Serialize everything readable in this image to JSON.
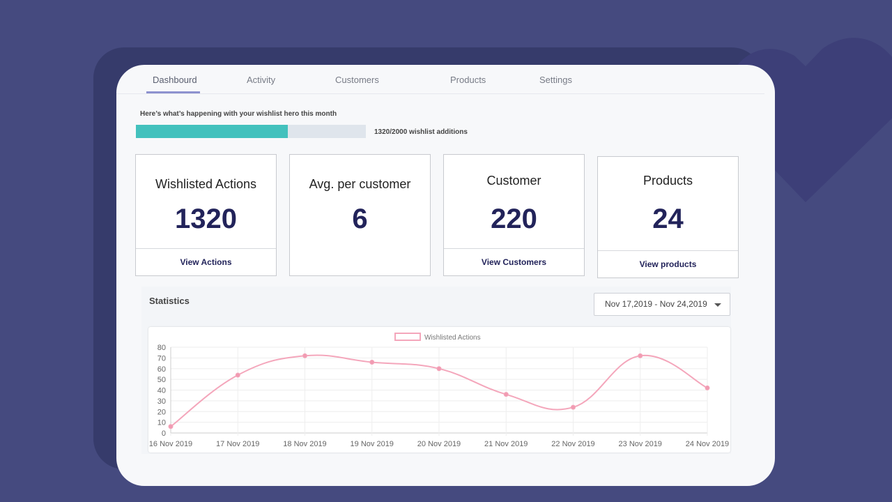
{
  "tabs": [
    {
      "label": "Dashbourd",
      "active": true
    },
    {
      "label": "Activity"
    },
    {
      "label": "Customers"
    },
    {
      "label": "Products"
    },
    {
      "label": "Settings"
    }
  ],
  "intro": "Here’s what’s happening with your wishlist hero this month",
  "progress": {
    "current": 1320,
    "goal": 2000,
    "fraction": 0.66,
    "label": "1320/2000 wishlist additions",
    "color": "#43c1bd"
  },
  "stats": [
    {
      "title": "Wishlisted Actions",
      "value": "1320",
      "link": "View Actions"
    },
    {
      "title": "Avg. per customer",
      "value": "6"
    },
    {
      "title": "Customer",
      "value": "220",
      "link": "View Customers"
    },
    {
      "title": "Products",
      "value": "24",
      "link": "View products"
    }
  ],
  "statistics": {
    "title": "Statistics",
    "date_range": "Nov 17,2019 - Nov 24,2019"
  },
  "chart_data": {
    "type": "line",
    "categories": [
      "16 Nov 2019",
      "17 Nov 2019",
      "18 Nov 2019",
      "19 Nov 2019",
      "20 Nov 2019",
      "21 Nov 2019",
      "22 Nov 2019",
      "23 Nov 2019",
      "24 Nov 2019"
    ],
    "series": [
      {
        "name": "Wishlisted Actions",
        "values": [
          6,
          54,
          72,
          66,
          60,
          36,
          24,
          72,
          42
        ],
        "color": "#f4a6bb"
      }
    ],
    "yticks": [
      0,
      10,
      20,
      30,
      40,
      50,
      60,
      70,
      80
    ],
    "ylim": [
      0,
      80
    ],
    "grid": true,
    "legend": "top",
    "smooth": true
  }
}
